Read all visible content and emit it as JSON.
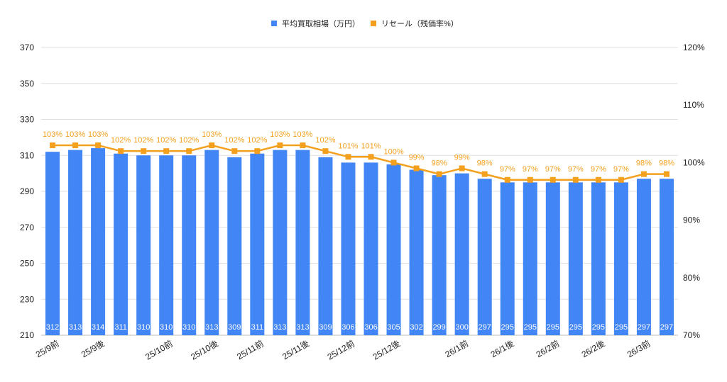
{
  "chart_data": {
    "type": "bar+line",
    "title": "",
    "legend": {
      "placement": "top"
    },
    "categories": [
      "25/9前",
      "",
      "25/9後",
      "",
      "",
      "25/10前",
      "",
      "25/10後",
      "",
      "25/11前",
      "",
      "25/11後",
      "",
      "25/12前",
      "",
      "25/12後",
      "",
      "",
      "26/1前",
      "",
      "26/1後",
      "",
      "26/2前",
      "",
      "26/2後",
      "",
      "26/3前",
      ""
    ],
    "series": [
      {
        "name": "平均買取相場（万円）",
        "type": "bar",
        "axis": "left",
        "color": "#4285f4",
        "values": [
          312,
          313,
          314,
          311,
          310,
          310,
          310,
          313,
          309,
          311,
          313,
          313,
          309,
          306,
          306,
          305,
          302,
          299,
          300,
          297,
          295,
          295,
          295,
          295,
          295,
          295,
          297,
          297
        ]
      },
      {
        "name": "リセール（残価率%）",
        "type": "line",
        "axis": "right",
        "color": "#f4a01f",
        "values": [
          103,
          103,
          103,
          102,
          102,
          102,
          102,
          103,
          102,
          102,
          103,
          103,
          102,
          101,
          101,
          100,
          99,
          98,
          99,
          98,
          97,
          97,
          97,
          97,
          97,
          97,
          98,
          98
        ]
      }
    ],
    "y_left": {
      "range": [
        210,
        370
      ],
      "ticks": [
        210,
        230,
        250,
        270,
        290,
        310,
        330,
        350,
        370
      ]
    },
    "y_right": {
      "range": [
        70,
        120
      ],
      "ticks": [
        "70%",
        "80%",
        "90%",
        "100%",
        "110%",
        "120%"
      ],
      "tick_values": [
        70,
        80,
        90,
        100,
        110,
        120
      ]
    },
    "grid": true
  }
}
